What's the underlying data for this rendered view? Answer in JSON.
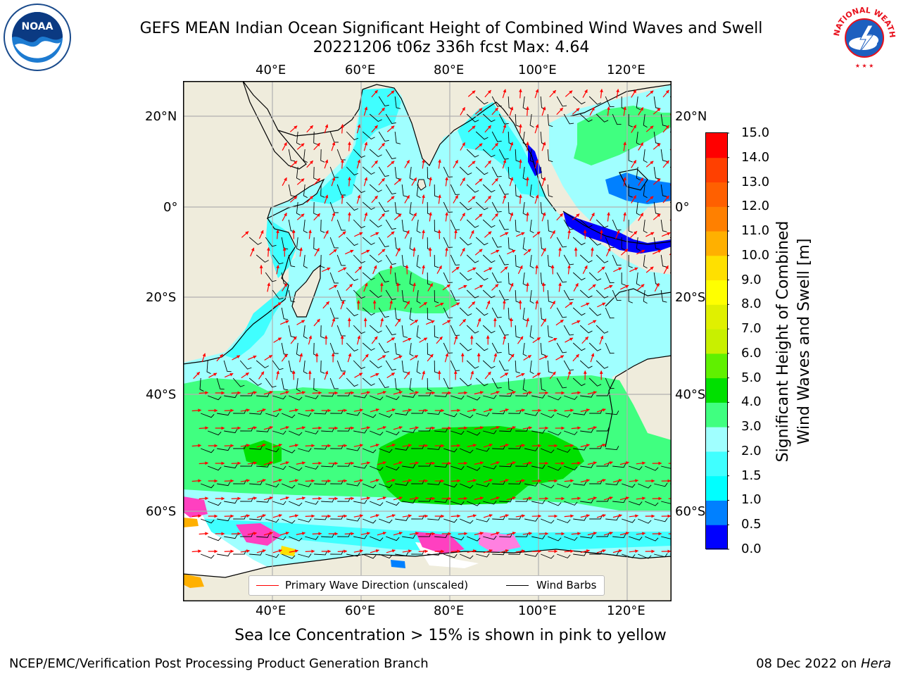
{
  "title": {
    "line1": "GEFS MEAN Indian Ocean Significant Height of Combined Wind Waves and Swell",
    "line2": "20221206 t06z 336h fcst   Max: 4.64"
  },
  "logos": {
    "left": {
      "icon": "noaa-logo",
      "text": "NOAA"
    },
    "right": {
      "icon": "nws-logo",
      "text": "NATIONAL WEATHER SERVICE"
    }
  },
  "map": {
    "lon_labels": [
      "40°E",
      "60°E",
      "80°E",
      "100°E",
      "120°E"
    ],
    "lat_labels_left": [
      "20°N",
      "0°",
      "20°S",
      "40°S",
      "60°S"
    ],
    "lat_labels_right": [
      "20°N",
      "0°",
      "20°S",
      "40°S",
      "60°S"
    ],
    "lon_range": [
      20,
      130
    ],
    "lat_range": [
      -73,
      27
    ],
    "land_color": "#efecdc",
    "grid_color": "#b0b0b0"
  },
  "legend": {
    "wave_label": "Primary Wave Direction (unscaled)",
    "wave_color": "#ff0000",
    "wind_label": "Wind Barbs",
    "wind_color": "#000000"
  },
  "colorbar": {
    "title_line1": "Significant Height of Combined",
    "title_line2": "Wind Waves and Swell [m]",
    "labels": [
      "15.0",
      "14.0",
      "13.0",
      "12.0",
      "11.0",
      "10.0",
      "9.0",
      "8.0",
      "7.0",
      "6.0",
      "5.0",
      "4.0",
      "3.0",
      "2.0",
      "1.5",
      "1.0",
      "0.5",
      "0.0"
    ],
    "colors": [
      "#0000ff",
      "#0080ff",
      "#00ffff",
      "#40ffff",
      "#a0ffff",
      "#40ff80",
      "#00e000",
      "#60f000",
      "#c8f000",
      "#e0f000",
      "#ffff00",
      "#ffe000",
      "#ffb000",
      "#ff8000",
      "#ff6000",
      "#ff4000",
      "#ff0000"
    ]
  },
  "chart_data": {
    "type": "heatmap",
    "title": "GEFS MEAN Indian Ocean Significant Height of Combined Wind Waves and Swell",
    "subtitle": "20221206 t06z 336h fcst   Max: 4.64",
    "max_value": 4.64,
    "units": "m",
    "color_levels": [
      0.0,
      0.5,
      1.0,
      1.5,
      2.0,
      3.0,
      4.0,
      5.0,
      6.0,
      7.0,
      8.0,
      9.0,
      10.0,
      11.0,
      12.0,
      13.0,
      14.0,
      15.0
    ],
    "x_range": [
      20,
      130
    ],
    "y_range": [
      -73,
      27
    ]
  },
  "subcaption": "Sea Ice Concentration > 15% is shown in pink to yellow",
  "footer": {
    "left": "NCEP/EMC/Verification Post Processing Product Generation Branch",
    "right_date": "08 Dec 2022 on ",
    "right_host": "Hera"
  }
}
